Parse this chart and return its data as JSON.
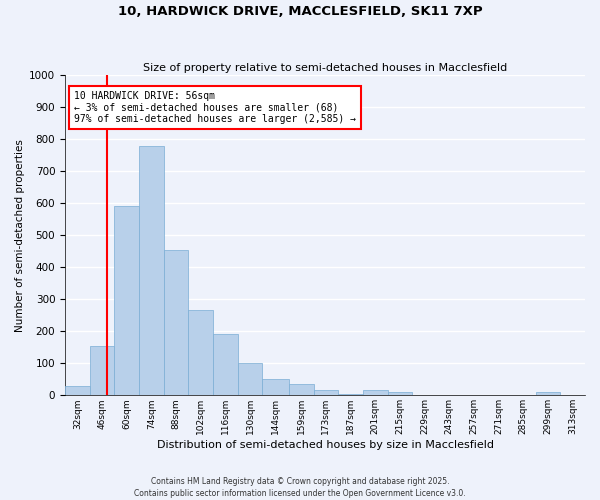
{
  "title": "10, HARDWICK DRIVE, MACCLESFIELD, SK11 7XP",
  "subtitle": "Size of property relative to semi-detached houses in Macclesfield",
  "xlabel": "Distribution of semi-detached houses by size in Macclesfield",
  "ylabel": "Number of semi-detached properties",
  "bin_labels": [
    "32sqm",
    "46sqm",
    "60sqm",
    "74sqm",
    "88sqm",
    "102sqm",
    "116sqm",
    "130sqm",
    "144sqm",
    "159sqm",
    "173sqm",
    "187sqm",
    "201sqm",
    "215sqm",
    "229sqm",
    "243sqm",
    "257sqm",
    "271sqm",
    "285sqm",
    "299sqm",
    "313sqm"
  ],
  "bin_left_edges": [
    32,
    46,
    60,
    74,
    88,
    102,
    116,
    130,
    144,
    159,
    173,
    187,
    201,
    215,
    229,
    243,
    257,
    271,
    285,
    299,
    313
  ],
  "bin_widths": [
    14,
    14,
    14,
    14,
    14,
    14,
    14,
    14,
    15,
    14,
    14,
    14,
    14,
    14,
    14,
    14,
    14,
    14,
    14,
    14,
    14
  ],
  "bar_heights": [
    30,
    155,
    590,
    780,
    455,
    265,
    190,
    100,
    50,
    35,
    15,
    5,
    15,
    10,
    0,
    0,
    0,
    0,
    0,
    10,
    0
  ],
  "bar_color": "#b8d0ea",
  "bar_edge_color": "#7aadd4",
  "property_line_x": 56,
  "property_line_color": "red",
  "annotation_text": "10 HARDWICK DRIVE: 56sqm\n← 3% of semi-detached houses are smaller (68)\n97% of semi-detached houses are larger (2,585) →",
  "annotation_box_color": "white",
  "annotation_box_edge_color": "red",
  "ylim": [
    0,
    1000
  ],
  "yticks": [
    0,
    100,
    200,
    300,
    400,
    500,
    600,
    700,
    800,
    900,
    1000
  ],
  "background_color": "#eef2fb",
  "grid_color": "white",
  "footer_line1": "Contains HM Land Registry data © Crown copyright and database right 2025.",
  "footer_line2": "Contains public sector information licensed under the Open Government Licence v3.0."
}
